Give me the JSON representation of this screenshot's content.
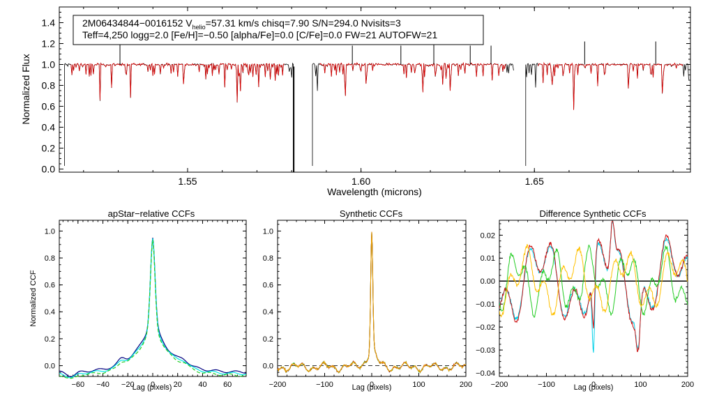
{
  "chart_data": [
    {
      "type": "line",
      "title": "",
      "info_line1_prefix": "2M06434844−0016152  V",
      "info_line1_sub": "helio",
      "info_line1_suffix": "=57.31 km/s  chisq=7.90  S/N=294.0  Nvisits=3",
      "info_line2": "Teff=4,250 logg=2.0 [Fe/H]=−0.50 [alpha/Fe]=0.0 [C/Fe]=0.0 FW=21 AUTOFW=21",
      "xlabel": "Wavelength (microns)",
      "ylabel": "Normalized Flux",
      "xlim": [
        1.513,
        1.695
      ],
      "ylim": [
        -0.03,
        1.55
      ],
      "xticks": [
        "1.55",
        "1.60",
        "1.65"
      ],
      "xtick_values": [
        1.55,
        1.6,
        1.65
      ],
      "yticks": [
        "0.0",
        "0.2",
        "0.4",
        "0.6",
        "0.8",
        "1.0",
        "1.2",
        "1.4"
      ],
      "ytick_values": [
        0.0,
        0.2,
        0.4,
        0.6,
        0.8,
        1.0,
        1.2,
        1.4
      ],
      "chip_ranges": [
        [
          1.5145,
          1.5805
        ],
        [
          1.586,
          1.644
        ],
        [
          1.6475,
          1.6945
        ]
      ],
      "series": [
        {
          "name": "observed",
          "color": "#000000"
        },
        {
          "name": "model",
          "color": "#e00000",
          "ranges": [
            [
              1.516,
              1.578
            ],
            [
              1.588,
              1.642
            ],
            [
              1.651,
              1.693
            ]
          ]
        }
      ],
      "spikes": [
        1.5305,
        1.621,
        1.6645,
        1.685,
        1.5975,
        1.6115,
        1.6315,
        1.6375
      ],
      "edge_drops": [
        1.5145,
        1.581,
        1.586,
        1.6475
      ]
    },
    {
      "type": "line",
      "title": "apStar−relative CCFs",
      "xlabel": "Lag (pixels)",
      "ylabel": "Normalized CCF",
      "xlim": [
        -75,
        75
      ],
      "ylim": [
        -0.08,
        1.08
      ],
      "xticks": [
        "−60",
        "−40",
        "−20",
        "0",
        "20",
        "40",
        "60"
      ],
      "xtick_values": [
        -60,
        -40,
        -20,
        0,
        20,
        40,
        60
      ],
      "yticks": [
        "0.0",
        "0.2",
        "0.4",
        "0.6",
        "0.8",
        "1.0"
      ],
      "ytick_values": [
        0.0,
        0.2,
        0.4,
        0.6,
        0.8,
        1.0
      ],
      "series": [
        {
          "name": "visit-1",
          "color": "#000080"
        },
        {
          "name": "visit-2",
          "color": "#00e5e5"
        },
        {
          "name": "visit-3",
          "color": "#22cc22",
          "dashed": true
        }
      ]
    },
    {
      "type": "line",
      "title": "Synthetic CCFs",
      "xlabel": "Lag (pixels)",
      "ylabel": "",
      "xlim": [
        -200,
        200
      ],
      "ylim": [
        -0.08,
        1.08
      ],
      "xticks": [
        "−200",
        "−100",
        "0",
        "100",
        "200"
      ],
      "xtick_values": [
        -200,
        -100,
        0,
        100,
        200
      ],
      "yticks": [
        "0.0",
        "0.2",
        "0.4",
        "0.6",
        "0.8",
        "1.0"
      ],
      "ytick_values": [
        0.0,
        0.2,
        0.4,
        0.6,
        0.8,
        1.0
      ],
      "series": [
        {
          "name": "visit-1",
          "color": "#000000"
        },
        {
          "name": "visit-2",
          "color": "#22cc22"
        },
        {
          "name": "visit-3",
          "color": "#d02020"
        },
        {
          "name": "visit-4",
          "color": "#e8a000"
        }
      ]
    },
    {
      "type": "line",
      "title": "Difference Synthetic CCFs",
      "xlabel": "Lag (pixels)",
      "ylabel": "",
      "xlim": [
        -200,
        200
      ],
      "ylim": [
        -0.0415,
        0.0265
      ],
      "xticks": [
        "−200",
        "−100",
        "0",
        "100",
        "200"
      ],
      "xtick_values": [
        -200,
        -100,
        0,
        100,
        200
      ],
      "yticks": [
        "−0.04",
        "−0.03",
        "−0.02",
        "−0.01",
        "0.00",
        "0.01",
        "0.02"
      ],
      "ytick_values": [
        -0.04,
        -0.03,
        -0.02,
        -0.01,
        0.0,
        0.01,
        0.02
      ],
      "series": [
        {
          "name": "zero",
          "color": "#000000"
        },
        {
          "name": "diff-cyan",
          "color": "#00d0e8"
        },
        {
          "name": "diff-red",
          "color": "#cc1010"
        },
        {
          "name": "diff-green",
          "color": "#22cc22"
        },
        {
          "name": "diff-yellow",
          "color": "#ffc000"
        }
      ]
    }
  ]
}
